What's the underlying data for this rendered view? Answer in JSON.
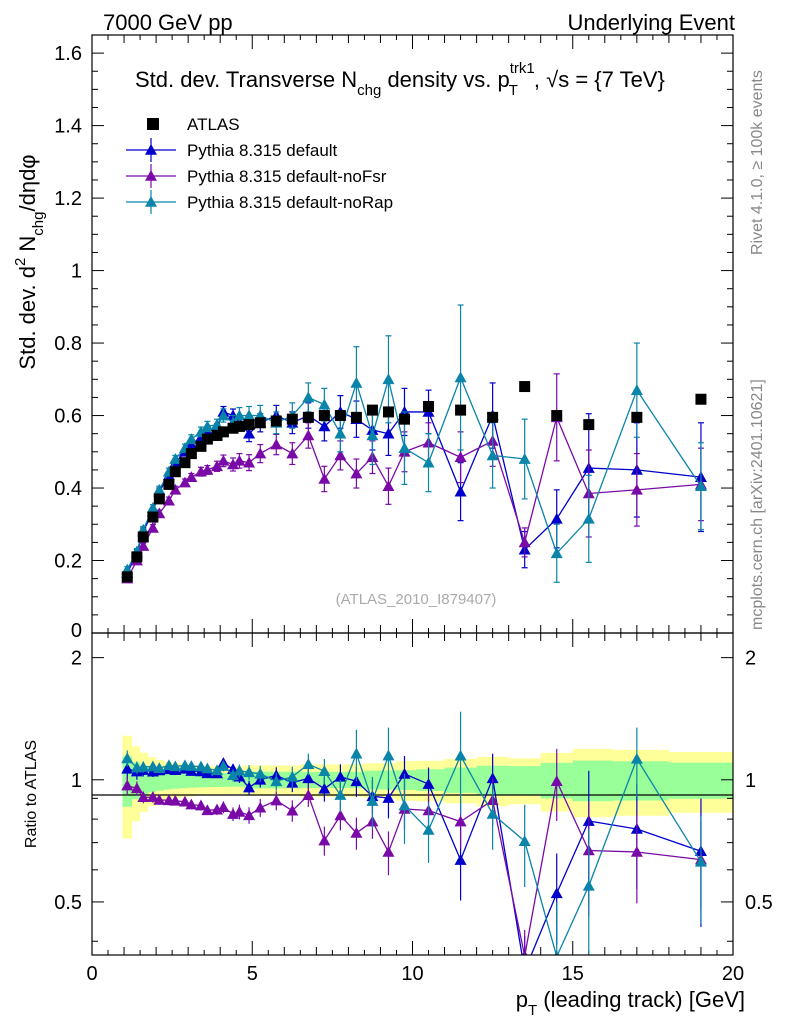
{
  "header": {
    "left": "7000 GeV pp",
    "right": "Underlying Event"
  },
  "side": {
    "rivet": "Rivet 4.1.0, ≥ 100k events",
    "mcplots": "mcplots.cern.ch [arXiv:2401.10621]"
  },
  "colors": {
    "atlas": "#000000",
    "default": "#0000cc",
    "noFsr": "#7a0aa8",
    "noRap": "#0a84a8",
    "band_inner": "#99ff99",
    "band_outer": "#ffff99"
  },
  "chart_data": {
    "type": "scatter",
    "title": {
      "a": "Std. dev. Transverse N",
      "a_sub": "chg",
      "b": " density vs. p",
      "b_sup": "trk1",
      "b_sub": "T",
      "c": ", √s = {7 TeV}"
    },
    "watermark": "(ATLAS_2010_I879407)",
    "ylabel": {
      "a": "Std. dev. d",
      "sup": "2",
      "b": " N",
      "sub": "chg",
      "c": "/dηdφ"
    },
    "ratio_ylabel": "Ratio to ATLAS",
    "xlabel": {
      "a": "p",
      "sub": "T",
      "b": " (leading track) [GeV]"
    },
    "xlim": [
      0,
      20
    ],
    "ylim": [
      0,
      1.65
    ],
    "ratio_ylim": [
      0.37,
      2.3
    ],
    "x_ticks": [
      "0",
      "5",
      "10",
      "15",
      "20"
    ],
    "y_ticks": [
      "0.2",
      "0.4",
      "0.6",
      "0.8",
      "1",
      "1.2",
      "1.4",
      "1.6"
    ],
    "y_ticks_zero_label": "0",
    "ratio_ticks": [
      "0.5",
      "1",
      "2"
    ],
    "legend": [
      {
        "label": "ATLAS",
        "marker": "square",
        "color_key": "atlas"
      },
      {
        "label": "Pythia 8.315 default",
        "marker": "triangle",
        "color_key": "default"
      },
      {
        "label": "Pythia 8.315 default-noFsr",
        "marker": "triangle",
        "color_key": "noFsr"
      },
      {
        "label": "Pythia 8.315 default-noRap",
        "marker": "triangle",
        "color_key": "noRap"
      }
    ],
    "x": [
      1.1,
      1.4,
      1.6,
      1.9,
      2.1,
      2.4,
      2.6,
      2.9,
      3.1,
      3.4,
      3.6,
      3.9,
      4.1,
      4.4,
      4.6,
      4.9,
      5.25,
      5.75,
      6.25,
      6.75,
      7.25,
      7.75,
      8.25,
      8.75,
      9.25,
      9.75,
      10.5,
      11.5,
      12.5,
      13.5,
      14.5,
      15.5,
      17.0,
      19.0
    ],
    "atlas": {
      "values": [
        0.155,
        0.21,
        0.265,
        0.32,
        0.37,
        0.41,
        0.445,
        0.47,
        0.495,
        0.515,
        0.535,
        0.545,
        0.555,
        0.565,
        0.57,
        0.575,
        0.58,
        0.585,
        0.59,
        0.595,
        0.6,
        0.6,
        0.595,
        0.615,
        0.61,
        0.59,
        0.625,
        0.615,
        0.595,
        0.68,
        0.6,
        0.575,
        0.595,
        0.645
      ],
      "band_inner": [
        0.04,
        0.04,
        0.04,
        0.04,
        0.04,
        0.04,
        0.04,
        0.04,
        0.04,
        0.04,
        0.04,
        0.04,
        0.04,
        0.04,
        0.04,
        0.05,
        0.05,
        0.05,
        0.05,
        0.05,
        0.05,
        0.05,
        0.05,
        0.06,
        0.06,
        0.06,
        0.07,
        0.08,
        0.09,
        0.1,
        0.11,
        0.12,
        0.12,
        0.12
      ],
      "band_outer": [
        0.08,
        0.08,
        0.08,
        0.08,
        0.08,
        0.08,
        0.08,
        0.08,
        0.08,
        0.08,
        0.08,
        0.08,
        0.08,
        0.08,
        0.08,
        0.09,
        0.09,
        0.09,
        0.09,
        0.1,
        0.1,
        0.1,
        0.1,
        0.11,
        0.11,
        0.12,
        0.13,
        0.14,
        0.15,
        0.16,
        0.18,
        0.2,
        0.2,
        0.2
      ]
    },
    "series": [
      {
        "name": "Pythia 8.315 default",
        "color_key": "default",
        "values": [
          0.165,
          0.22,
          0.28,
          0.335,
          0.39,
          0.435,
          0.47,
          0.5,
          0.52,
          0.54,
          0.555,
          0.565,
          0.61,
          0.6,
          0.58,
          0.55,
          0.58,
          0.6,
          0.58,
          0.6,
          0.57,
          0.61,
          0.59,
          0.56,
          0.55,
          0.61,
          0.61,
          0.39,
          0.6,
          0.23,
          0.315,
          0.455,
          0.45,
          0.43
        ],
        "errors": [
          0.01,
          0.01,
          0.01,
          0.01,
          0.01,
          0.01,
          0.01,
          0.01,
          0.01,
          0.01,
          0.012,
          0.012,
          0.015,
          0.018,
          0.02,
          0.022,
          0.025,
          0.028,
          0.03,
          0.035,
          0.04,
          0.045,
          0.05,
          0.055,
          0.06,
          0.065,
          0.06,
          0.08,
          0.09,
          0.05,
          0.08,
          0.15,
          0.13,
          0.15
        ]
      },
      {
        "name": "Pythia 8.315 default-noFsr",
        "color_key": "noFsr",
        "values": [
          0.15,
          0.2,
          0.24,
          0.29,
          0.33,
          0.365,
          0.395,
          0.415,
          0.43,
          0.445,
          0.45,
          0.46,
          0.475,
          0.465,
          0.475,
          0.47,
          0.495,
          0.52,
          0.495,
          0.545,
          0.425,
          0.49,
          0.44,
          0.485,
          0.405,
          0.5,
          0.525,
          0.485,
          0.53,
          0.25,
          0.595,
          0.385,
          0.395,
          0.41
        ],
        "errors": [
          0.008,
          0.008,
          0.008,
          0.009,
          0.009,
          0.01,
          0.01,
          0.01,
          0.01,
          0.012,
          0.012,
          0.014,
          0.016,
          0.018,
          0.02,
          0.022,
          0.025,
          0.028,
          0.03,
          0.035,
          0.035,
          0.04,
          0.04,
          0.045,
          0.05,
          0.055,
          0.055,
          0.07,
          0.07,
          0.04,
          0.12,
          0.12,
          0.1,
          0.1
        ]
      },
      {
        "name": "Pythia 8.315 default-noRap",
        "color_key": "noRap",
        "values": [
          0.175,
          0.225,
          0.285,
          0.345,
          0.395,
          0.445,
          0.48,
          0.51,
          0.535,
          0.555,
          0.57,
          0.575,
          0.6,
          0.58,
          0.6,
          0.6,
          0.6,
          0.58,
          0.6,
          0.65,
          0.63,
          0.55,
          0.69,
          0.545,
          0.7,
          0.51,
          0.47,
          0.705,
          0.49,
          0.48,
          0.22,
          0.315,
          0.67,
          0.405
        ],
        "errors": [
          0.008,
          0.008,
          0.009,
          0.009,
          0.01,
          0.01,
          0.01,
          0.011,
          0.012,
          0.013,
          0.014,
          0.015,
          0.018,
          0.02,
          0.022,
          0.025,
          0.028,
          0.03,
          0.035,
          0.04,
          0.045,
          0.05,
          0.1,
          0.08,
          0.12,
          0.1,
          0.08,
          0.2,
          0.09,
          0.11,
          0.08,
          0.12,
          0.13,
          0.12
        ]
      }
    ]
  }
}
